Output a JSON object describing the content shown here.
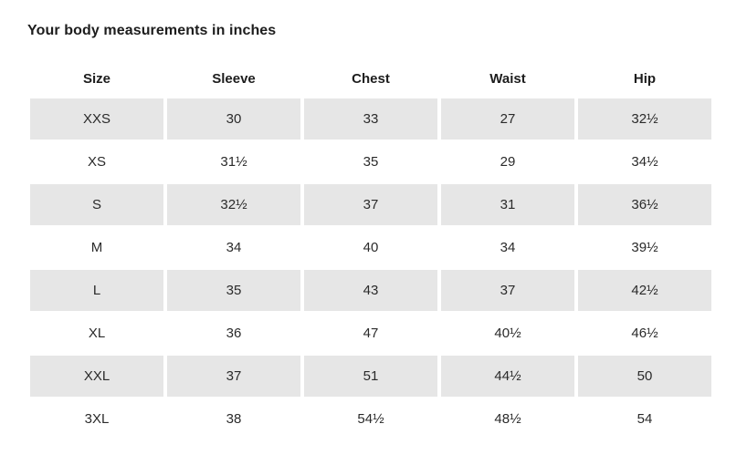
{
  "page": {
    "title": "Your body measurements in inches"
  },
  "table": {
    "columns": [
      "Size",
      "Sleeve",
      "Chest",
      "Waist",
      "Hip"
    ],
    "rows": [
      {
        "size": "XXS",
        "sleeve": "30",
        "chest": "33",
        "waist": "27",
        "hip": "32½",
        "shaded": true
      },
      {
        "size": "XS",
        "sleeve": "31½",
        "chest": "35",
        "waist": "29",
        "hip": "34½",
        "shaded": false
      },
      {
        "size": "S",
        "sleeve": "32½",
        "chest": "37",
        "waist": "31",
        "hip": "36½",
        "shaded": true
      },
      {
        "size": "M",
        "sleeve": "34",
        "chest": "40",
        "waist": "34",
        "hip": "39½",
        "shaded": false
      },
      {
        "size": "L",
        "sleeve": "35",
        "chest": "43",
        "waist": "37",
        "hip": "42½",
        "shaded": true
      },
      {
        "size": "XL",
        "sleeve": "36",
        "chest": "47",
        "waist": "40½",
        "hip": "46½",
        "shaded": false
      },
      {
        "size": "XXL",
        "sleeve": "37",
        "chest": "51",
        "waist": "44½",
        "hip": "50",
        "shaded": true
      },
      {
        "size": "3XL",
        "sleeve": "38",
        "chest": "54½",
        "waist": "48½",
        "hip": "54",
        "shaded": false
      }
    ]
  },
  "colors": {
    "shaded_row_bg": "#e6e6e6",
    "background": "#ffffff",
    "text": "#222222"
  }
}
